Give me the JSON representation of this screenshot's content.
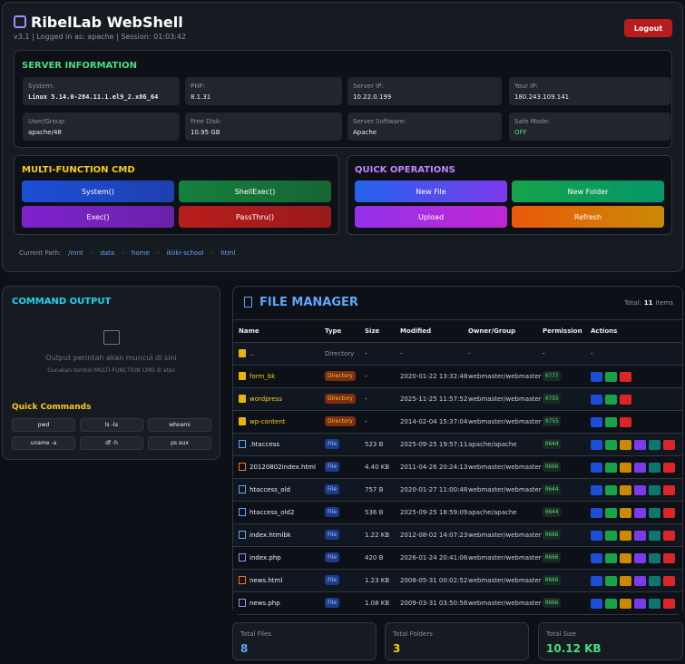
{
  "header": {
    "title": "RibelLab WebShell",
    "subtitle": "v3.1 | Logged in as: apache | Session: 01:03:42",
    "logout": "Logout"
  },
  "server_info": {
    "title": "SERVER INFORMATION",
    "items": [
      {
        "label": "System:",
        "value": "Linux 5.14.0-284.11.1.el9_2.x86_64"
      },
      {
        "label": "PHP:",
        "value": "8.1.31"
      },
      {
        "label": "Server IP:",
        "value": "10.22.0.199"
      },
      {
        "label": "Your IP:",
        "value": "180.243.109.141"
      },
      {
        "label": "User/Group:",
        "value": "apache/48"
      },
      {
        "label": "Free Disk:",
        "value": "10.95 GB"
      },
      {
        "label": "Server Software:",
        "value": "Apache"
      },
      {
        "label": "Safe Mode:",
        "value": "OFF"
      }
    ]
  },
  "cmd": {
    "title": "MULTI-FUNCTION CMD",
    "buttons": [
      "System()",
      "ShellExec()",
      "Exec()",
      "PassThru()"
    ]
  },
  "quick_ops": {
    "title": "QUICK OPERATIONS",
    "buttons": [
      "New File",
      "New Folder",
      "Upload",
      "Refresh"
    ]
  },
  "path": {
    "label": "Current Path:",
    "parts": [
      "/mnt",
      "data",
      "home",
      "ikiiki-school",
      "html"
    ]
  },
  "output": {
    "title": "COMMAND OUTPUT",
    "placeholder": "Output perintah akan muncul di sini",
    "hint": "Gunakan tombol MULTI-FUNCTION CMD di atas",
    "quick_title": "Quick Commands",
    "quick": [
      "pwd",
      "ls -la",
      "whoami",
      "uname -a",
      "df -h",
      "ps aux"
    ]
  },
  "file_manager": {
    "title": "FILE MANAGER",
    "total_label": "Total:",
    "total": 11,
    "total_unit": "items",
    "columns": [
      "Name",
      "Type",
      "Size",
      "Modified",
      "Owner/Group",
      "Permission",
      "Actions"
    ],
    "rows": [
      [
        "..",
        "Directory",
        "-",
        "-",
        "-",
        "-",
        "-"
      ],
      [
        "form_bk",
        "Directory",
        "-",
        "2020-01-22 13:32:48",
        "webmaster/webmaster",
        "0777"
      ],
      [
        "wordpress",
        "Directory",
        "-",
        "2025-11-25 11:57:52",
        "webmaster/webmaster",
        "0755"
      ],
      [
        "wp-content",
        "Directory",
        "-",
        "2014-02-04 15:37:04",
        "webmaster/webmaster",
        "0755"
      ],
      [
        ".htaccess",
        "File",
        "523 B",
        "2025-09-25 19:57:11",
        "apache/apache",
        "0644"
      ],
      [
        "20120802index.html",
        "File",
        "4.40 KB",
        "2011-04-26 20:24:13",
        "webmaster/webmaster",
        "0666"
      ],
      [
        "htaccess_old",
        "File",
        "757 B",
        "2020-01-27 11:00:48",
        "webmaster/webmaster",
        "0644"
      ],
      [
        "htaccess_old2",
        "File",
        "536 B",
        "2025-09-25 18:59:09",
        "apache/apache",
        "0644"
      ],
      [
        "index.htmlbk",
        "File",
        "1.22 KB",
        "2012-08-02 14:07:23",
        "webmaster/webmaster",
        "0666"
      ],
      [
        "index.php",
        "File",
        "420 B",
        "2026-01-24 20:41:06",
        "webmaster/webmaster",
        "0666"
      ],
      [
        "news.html",
        "File",
        "1.23 KB",
        "2008-05-31 00:02:52",
        "webmaster/webmaster",
        "0666"
      ],
      [
        "news.php",
        "File",
        "1.08 KB",
        "2009-03-31 03:50:56",
        "webmaster/webmaster",
        "0666"
      ]
    ]
  },
  "stats": [
    {
      "label": "Total Files",
      "value": 8
    },
    {
      "label": "Total Folders",
      "value": 3
    },
    {
      "label": "Total Size",
      "value": "10.12 KB"
    }
  ]
}
